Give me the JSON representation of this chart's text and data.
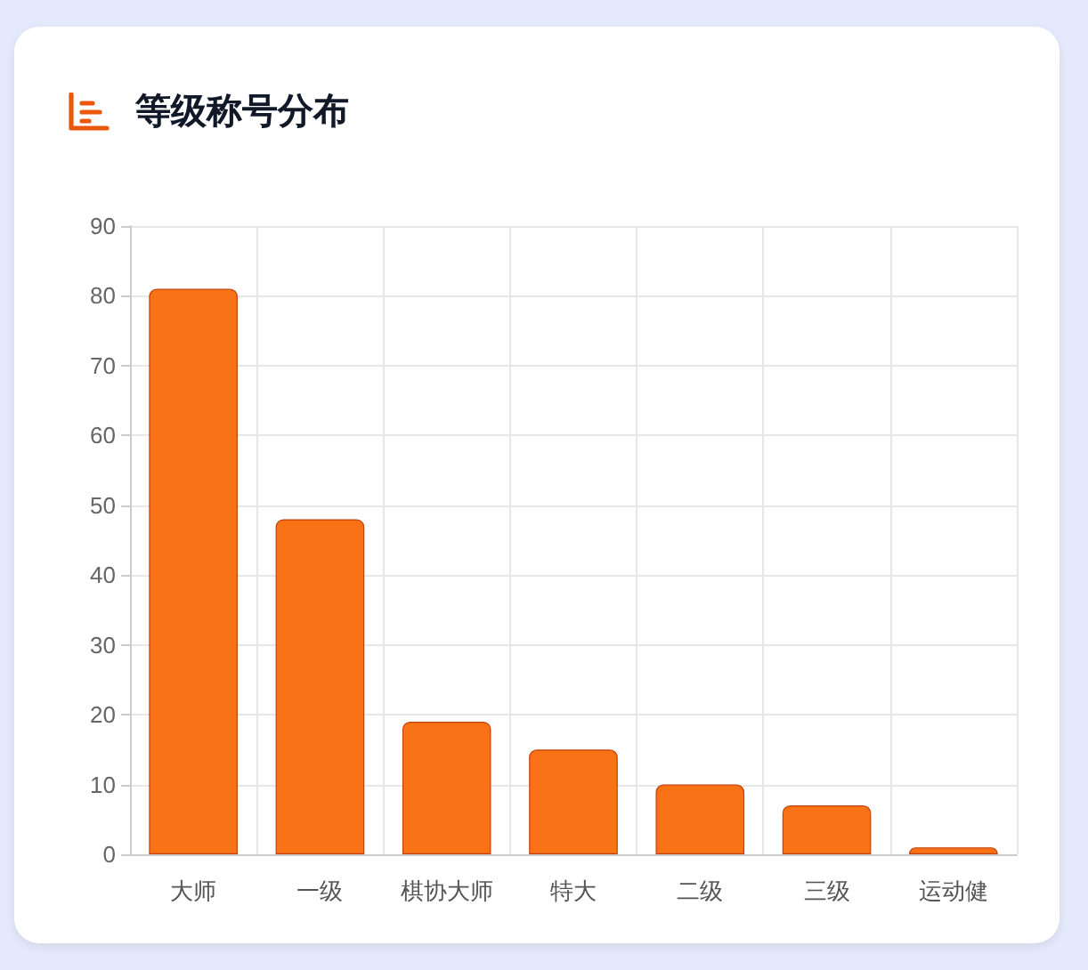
{
  "chart_data": {
    "type": "bar",
    "title": "等级称号分布",
    "categories": [
      "大师",
      "一级",
      "棋协大师",
      "特大",
      "二级",
      "三级",
      "运动健"
    ],
    "values": [
      81,
      48,
      19,
      15,
      10,
      7,
      1
    ],
    "color": "#f97316",
    "ylim": [
      0,
      90
    ],
    "yticks": [
      0,
      10,
      20,
      30,
      40,
      50,
      60,
      70,
      80,
      90
    ],
    "grid": true
  }
}
